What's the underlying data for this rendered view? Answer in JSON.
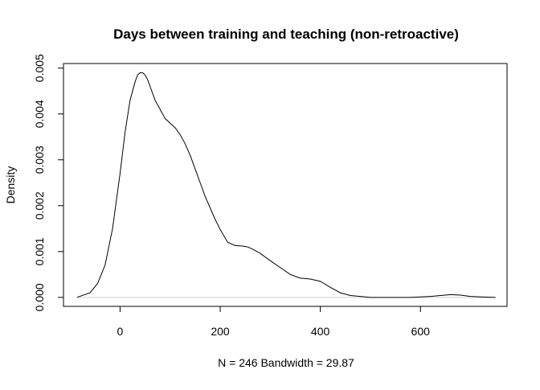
{
  "chart_data": {
    "type": "line",
    "title": "Days between training and teaching (non-retroactive)",
    "xlabel": "N = 246   Bandwidth = 29.87",
    "ylabel": "Density",
    "xlim": [
      -113,
      773
    ],
    "ylim": [
      -0.000196,
      0.0051
    ],
    "x_ticks": [
      0,
      200,
      400,
      600
    ],
    "x_tick_labels": [
      "0",
      "200",
      "400",
      "600"
    ],
    "y_ticks": [
      0.0,
      0.001,
      0.002,
      0.003,
      0.004,
      0.005
    ],
    "y_tick_labels": [
      "0.000",
      "0.001",
      "0.002",
      "0.003",
      "0.004",
      "0.005"
    ],
    "grid": false,
    "baseline": 0,
    "series": [
      {
        "x": [
          -86,
          -60,
          -45,
          -30,
          -15,
          0,
          10,
          20,
          30,
          35,
          40,
          45,
          50,
          55,
          60,
          70,
          80,
          90,
          100,
          110,
          120,
          130,
          140,
          150,
          160,
          170,
          180,
          190,
          200,
          215,
          230,
          245,
          255,
          265,
          280,
          300,
          320,
          340,
          360,
          380,
          400,
          420,
          440,
          460,
          480,
          500,
          520,
          540,
          560,
          580,
          600,
          620,
          640,
          660,
          680,
          700,
          720,
          750
        ],
        "y": [
          0.0,
          0.0001,
          0.0003,
          0.0007,
          0.0015,
          0.0027,
          0.0036,
          0.0043,
          0.0047,
          0.00485,
          0.0049,
          0.0049,
          0.00485,
          0.00475,
          0.0046,
          0.0043,
          0.0041,
          0.0039,
          0.0038,
          0.0037,
          0.00355,
          0.00335,
          0.0031,
          0.0028,
          0.0025,
          0.0022,
          0.00195,
          0.0017,
          0.00148,
          0.0012,
          0.00113,
          0.00112,
          0.0011,
          0.00105,
          0.00096,
          0.0008,
          0.00065,
          0.0005,
          0.00042,
          0.0004,
          0.00035,
          0.00022,
          0.0001,
          4e-05,
          2e-05,
          0.0,
          0.0,
          0.0,
          0.0,
          0.0,
          1e-05,
          2e-05,
          4e-05,
          6e-05,
          5e-05,
          2e-05,
          1e-05,
          0.0
        ]
      }
    ]
  }
}
